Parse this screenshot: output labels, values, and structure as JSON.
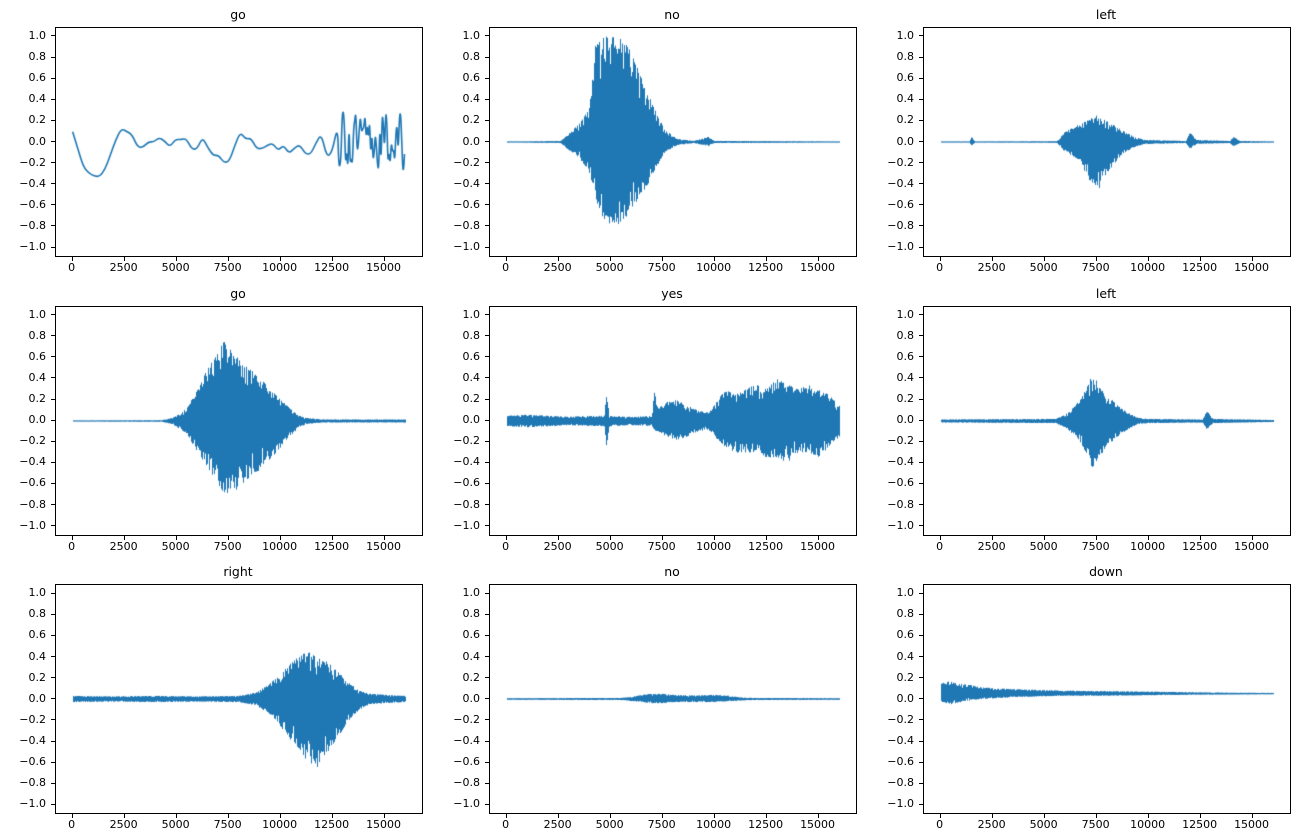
{
  "figure": {
    "background": "#ffffff",
    "line_color": "#1f77b4",
    "axis_color": "#000000"
  },
  "axes": {
    "x_tick_labels": [
      "0",
      "2500",
      "5000",
      "7500",
      "10000",
      "12500",
      "15000"
    ],
    "x_tick_values": [
      0,
      2500,
      5000,
      7500,
      10000,
      12500,
      15000
    ],
    "y_tick_labels": [
      "1.0",
      "0.8",
      "0.6",
      "0.4",
      "0.2",
      "0.0",
      "−0.2",
      "−0.4",
      "−0.6",
      "−0.8",
      "−1.0"
    ],
    "y_tick_values": [
      1.0,
      0.8,
      0.6,
      0.4,
      0.2,
      0.0,
      -0.2,
      -0.4,
      -0.6,
      -0.8,
      -1.0
    ],
    "xlim": [
      -800,
      16800
    ],
    "ylim": [
      -1.08,
      1.08
    ],
    "grid": false,
    "legend": "none"
  },
  "chart_data": [
    {
      "type": "line",
      "title": "go",
      "waveform": "smooth",
      "offset": 0.0,
      "x_range": [
        0,
        16000
      ],
      "envelope": [
        [
          0,
          0.4,
          0.3
        ],
        [
          800,
          0.45,
          0.35
        ],
        [
          2000,
          0.3,
          0.36
        ],
        [
          3500,
          0.2,
          0.15
        ],
        [
          5500,
          0.25,
          0.22
        ],
        [
          7500,
          0.3,
          0.25
        ],
        [
          9500,
          0.2,
          0.2
        ],
        [
          11000,
          0.42,
          0.2
        ],
        [
          12200,
          0.3,
          0.3
        ],
        [
          16000,
          0.32,
          0.3
        ]
      ],
      "tail_start": 12500
    },
    {
      "type": "line",
      "title": "no",
      "waveform": "noise",
      "offset": 0.0,
      "x_range": [
        0,
        16000
      ],
      "envelope": [
        [
          0,
          0.005,
          0.005
        ],
        [
          2600,
          0.01,
          0.01
        ],
        [
          3000,
          0.08,
          0.08
        ],
        [
          3500,
          0.18,
          0.15
        ],
        [
          4000,
          0.35,
          0.3
        ],
        [
          4300,
          0.98,
          0.55
        ],
        [
          4700,
          1.0,
          0.75
        ],
        [
          5300,
          1.0,
          0.8
        ],
        [
          5800,
          0.95,
          0.7
        ],
        [
          6300,
          0.7,
          0.55
        ],
        [
          6800,
          0.45,
          0.4
        ],
        [
          7200,
          0.3,
          0.25
        ],
        [
          7600,
          0.12,
          0.1
        ],
        [
          8200,
          0.03,
          0.03
        ],
        [
          9000,
          0.01,
          0.01
        ],
        [
          9700,
          0.05,
          0.04
        ],
        [
          10000,
          0.01,
          0.01
        ],
        [
          16000,
          0.006,
          0.006
        ]
      ]
    },
    {
      "type": "line",
      "title": "left",
      "waveform": "noise",
      "offset": 0.0,
      "x_range": [
        0,
        16000
      ],
      "envelope": [
        [
          0,
          0.005,
          0.005
        ],
        [
          1400,
          0.006,
          0.006
        ],
        [
          1500,
          0.05,
          0.04
        ],
        [
          1650,
          0.006,
          0.006
        ],
        [
          5600,
          0.008,
          0.008
        ],
        [
          6000,
          0.1,
          0.1
        ],
        [
          6500,
          0.15,
          0.15
        ],
        [
          7000,
          0.2,
          0.3
        ],
        [
          7500,
          0.25,
          0.5
        ],
        [
          8000,
          0.2,
          0.3
        ],
        [
          8700,
          0.12,
          0.12
        ],
        [
          9300,
          0.05,
          0.05
        ],
        [
          9800,
          0.02,
          0.02
        ],
        [
          11800,
          0.01,
          0.01
        ],
        [
          12000,
          0.09,
          0.07
        ],
        [
          12300,
          0.02,
          0.02
        ],
        [
          13900,
          0.01,
          0.01
        ],
        [
          14100,
          0.05,
          0.04
        ],
        [
          14400,
          0.01,
          0.01
        ],
        [
          16000,
          0.006,
          0.006
        ]
      ]
    },
    {
      "type": "line",
      "title": "go",
      "waveform": "noise",
      "offset": 0.0,
      "x_range": [
        0,
        16000
      ],
      "envelope": [
        [
          0,
          0.006,
          0.006
        ],
        [
          4300,
          0.008,
          0.008
        ],
        [
          4800,
          0.03,
          0.03
        ],
        [
          5500,
          0.12,
          0.12
        ],
        [
          6000,
          0.3,
          0.3
        ],
        [
          6500,
          0.5,
          0.45
        ],
        [
          7000,
          0.65,
          0.6
        ],
        [
          7300,
          0.77,
          0.7
        ],
        [
          7700,
          0.65,
          0.68
        ],
        [
          8200,
          0.55,
          0.6
        ],
        [
          8800,
          0.45,
          0.5
        ],
        [
          9300,
          0.35,
          0.4
        ],
        [
          9800,
          0.25,
          0.3
        ],
        [
          10300,
          0.15,
          0.18
        ],
        [
          10800,
          0.06,
          0.08
        ],
        [
          11200,
          0.03,
          0.03
        ],
        [
          12000,
          0.015,
          0.015
        ],
        [
          16000,
          0.015,
          0.015
        ]
      ]
    },
    {
      "type": "line",
      "title": "yes",
      "waveform": "noise",
      "offset": 0.0,
      "x_range": [
        0,
        16000
      ],
      "envelope": [
        [
          0,
          0.05,
          0.05
        ],
        [
          1000,
          0.06,
          0.06
        ],
        [
          2000,
          0.05,
          0.05
        ],
        [
          3000,
          0.04,
          0.04
        ],
        [
          4000,
          0.05,
          0.05
        ],
        [
          4700,
          0.05,
          0.05
        ],
        [
          4800,
          0.27,
          0.25
        ],
        [
          4950,
          0.05,
          0.05
        ],
        [
          6000,
          0.04,
          0.04
        ],
        [
          7000,
          0.05,
          0.05
        ],
        [
          7100,
          0.28,
          0.1
        ],
        [
          7300,
          0.12,
          0.1
        ],
        [
          7700,
          0.18,
          0.15
        ],
        [
          8200,
          0.2,
          0.18
        ],
        [
          8700,
          0.15,
          0.15
        ],
        [
          9200,
          0.1,
          0.1
        ],
        [
          9700,
          0.08,
          0.08
        ],
        [
          10000,
          0.15,
          0.15
        ],
        [
          10500,
          0.3,
          0.25
        ],
        [
          11000,
          0.25,
          0.3
        ],
        [
          11500,
          0.3,
          0.3
        ],
        [
          12000,
          0.35,
          0.3
        ],
        [
          12500,
          0.3,
          0.35
        ],
        [
          13000,
          0.4,
          0.35
        ],
        [
          13500,
          0.35,
          0.4
        ],
        [
          14000,
          0.3,
          0.3
        ],
        [
          14500,
          0.35,
          0.3
        ],
        [
          15000,
          0.3,
          0.35
        ],
        [
          15500,
          0.25,
          0.25
        ],
        [
          16000,
          0.15,
          0.15
        ]
      ]
    },
    {
      "type": "line",
      "title": "left",
      "waveform": "noise",
      "offset": 0.0,
      "x_range": [
        0,
        16000
      ],
      "envelope": [
        [
          0,
          0.015,
          0.015
        ],
        [
          5500,
          0.02,
          0.02
        ],
        [
          6000,
          0.06,
          0.06
        ],
        [
          6500,
          0.15,
          0.15
        ],
        [
          7000,
          0.3,
          0.3
        ],
        [
          7300,
          0.45,
          0.45
        ],
        [
          7600,
          0.35,
          0.35
        ],
        [
          8000,
          0.25,
          0.25
        ],
        [
          8500,
          0.15,
          0.15
        ],
        [
          9000,
          0.08,
          0.08
        ],
        [
          9500,
          0.03,
          0.03
        ],
        [
          10000,
          0.02,
          0.02
        ],
        [
          12600,
          0.015,
          0.015
        ],
        [
          12800,
          0.1,
          0.08
        ],
        [
          13100,
          0.02,
          0.02
        ],
        [
          16000,
          0.01,
          0.01
        ]
      ]
    },
    {
      "type": "line",
      "title": "right",
      "waveform": "noise",
      "offset": 0.0,
      "x_range": [
        0,
        16000
      ],
      "envelope": [
        [
          0,
          0.03,
          0.03
        ],
        [
          2000,
          0.025,
          0.025
        ],
        [
          4000,
          0.03,
          0.03
        ],
        [
          6000,
          0.025,
          0.025
        ],
        [
          8000,
          0.03,
          0.03
        ],
        [
          8800,
          0.06,
          0.06
        ],
        [
          9300,
          0.12,
          0.12
        ],
        [
          9800,
          0.2,
          0.2
        ],
        [
          10300,
          0.3,
          0.35
        ],
        [
          10800,
          0.4,
          0.45
        ],
        [
          11300,
          0.45,
          0.6
        ],
        [
          11800,
          0.4,
          0.65
        ],
        [
          12300,
          0.35,
          0.5
        ],
        [
          12800,
          0.25,
          0.35
        ],
        [
          13300,
          0.15,
          0.2
        ],
        [
          13800,
          0.08,
          0.1
        ],
        [
          14300,
          0.05,
          0.05
        ],
        [
          15000,
          0.04,
          0.04
        ],
        [
          16000,
          0.03,
          0.03
        ]
      ]
    },
    {
      "type": "line",
      "title": "no",
      "waveform": "noise",
      "offset": 0.0,
      "x_range": [
        0,
        16000
      ],
      "envelope": [
        [
          0,
          0.008,
          0.008
        ],
        [
          5500,
          0.01,
          0.01
        ],
        [
          6000,
          0.02,
          0.02
        ],
        [
          6500,
          0.04,
          0.03
        ],
        [
          7000,
          0.05,
          0.04
        ],
        [
          7500,
          0.05,
          0.04
        ],
        [
          8000,
          0.04,
          0.03
        ],
        [
          9000,
          0.035,
          0.03
        ],
        [
          10000,
          0.04,
          0.03
        ],
        [
          10800,
          0.03,
          0.02
        ],
        [
          11200,
          0.015,
          0.015
        ],
        [
          12000,
          0.01,
          0.01
        ],
        [
          16000,
          0.008,
          0.008
        ]
      ]
    },
    {
      "type": "line",
      "title": "down",
      "waveform": "noise",
      "offset": 0.05,
      "x_range": [
        0,
        16000
      ],
      "envelope": [
        [
          0,
          0.1,
          0.08
        ],
        [
          500,
          0.12,
          0.1
        ],
        [
          1000,
          0.1,
          0.08
        ],
        [
          1500,
          0.08,
          0.06
        ],
        [
          2000,
          0.06,
          0.05
        ],
        [
          3000,
          0.05,
          0.04
        ],
        [
          4000,
          0.04,
          0.03
        ],
        [
          6000,
          0.03,
          0.02
        ],
        [
          8000,
          0.025,
          0.02
        ],
        [
          10000,
          0.02,
          0.015
        ],
        [
          12000,
          0.015,
          0.01
        ],
        [
          14000,
          0.01,
          0.008
        ],
        [
          16000,
          0.008,
          0.006
        ]
      ]
    }
  ]
}
